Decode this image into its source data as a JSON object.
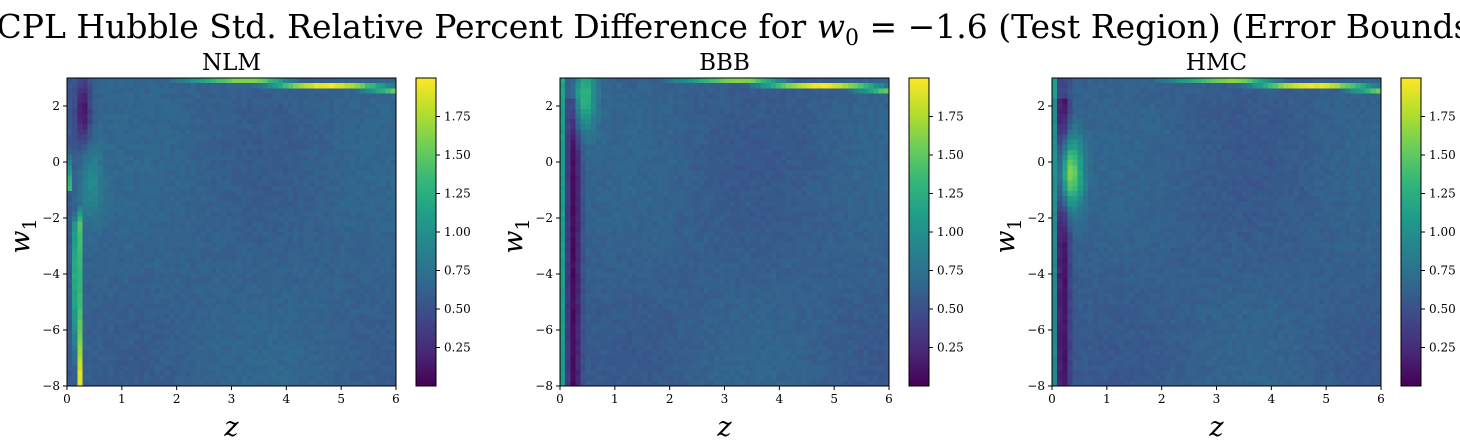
{
  "chart_data": {
    "title": "CPL Hubble Std. Relative Percent Difference for w₀ = −1.6 (Test Region) (Error Bounds)",
    "title_parts": {
      "prefix": "CPL Hubble Std. Relative Percent Difference for ",
      "var": "w",
      "sub": "0",
      "eq": " = −1.6",
      "suffix": " (Test Region) (Error Bounds)"
    },
    "colormap": "viridis",
    "colormap_stops": [
      "#440154",
      "#482878",
      "#3e4989",
      "#31688e",
      "#26828e",
      "#1f9e89",
      "#35b779",
      "#6ece58",
      "#b5de2b",
      "#fde725"
    ],
    "xlabel": "z",
    "ylabel": {
      "var": "w",
      "sub": "1"
    },
    "xlim": [
      0,
      6
    ],
    "ylim": [
      -8,
      3
    ],
    "x_ticks": [
      "0",
      "1",
      "2",
      "3",
      "4",
      "5",
      "6"
    ],
    "y_ticks": [
      "−8",
      "−6",
      "−4",
      "−2",
      "0",
      "2"
    ],
    "color_range": [
      0,
      2.0
    ],
    "colorbar_ticks": [
      "0.25",
      "0.50",
      "0.75",
      "1.00",
      "1.25",
      "1.50",
      "1.75"
    ],
    "panels": [
      {
        "type": "heatmap",
        "title": "NLM",
        "features": {
          "base": 0.62,
          "left_band": {
            "value": 0.55,
            "width": 0.12
          },
          "vertical_arc": {
            "z_center": 0.22,
            "w1_top": -1.0,
            "peak": 1.95,
            "bend": 0.012
          },
          "dark_notch": {
            "z": 0.3,
            "w1": 1.8,
            "value": 0.1
          },
          "bright_blob": {
            "z": 0.45,
            "w1": -0.8,
            "value": 0.95
          },
          "top_ridge": {
            "z_start": 3.0,
            "w1_at_start": 2.9,
            "w1_at_end": 2.6,
            "peak": 1.95
          }
        }
      },
      {
        "type": "heatmap",
        "title": "BBB",
        "features": {
          "base": 0.6,
          "left_edge": {
            "value": 1.85,
            "width": 0.05
          },
          "dark_stripe": {
            "z": 0.25,
            "value": 0.05
          },
          "bright_blob": {
            "z": 0.45,
            "w1": 2.4,
            "value": 1.3
          },
          "top_ridge": {
            "z_start": 3.0,
            "w1_at_start": 2.9,
            "w1_at_end": 2.6,
            "peak": 1.95
          }
        }
      },
      {
        "type": "heatmap",
        "title": "HMC",
        "features": {
          "base": 0.6,
          "left_edge": {
            "value": 1.85,
            "width": 0.05
          },
          "dark_stripe": {
            "z": 0.2,
            "value": 0.08
          },
          "bright_blob": {
            "z": 0.35,
            "w1": -0.4,
            "value": 1.6
          },
          "top_ridge": {
            "z_start": 3.0,
            "w1_at_start": 2.9,
            "w1_at_end": 2.6,
            "peak": 1.95
          }
        }
      }
    ]
  }
}
